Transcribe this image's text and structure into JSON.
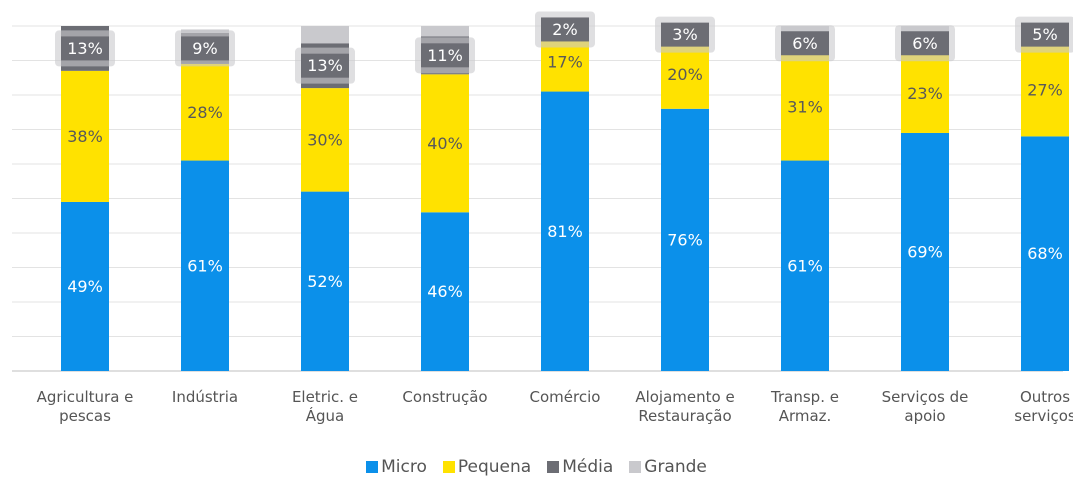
{
  "chart_data": {
    "type": "stacked_bar",
    "categories": [
      "Agricultura e\npescas",
      "Indústria",
      "Eletric. e\nÁgua",
      "Construção",
      "Comércio",
      "Alojamento e\nRestauração",
      "Transp. e\nArmaz.",
      "Serviços de\napoio",
      "Outros\nserviços"
    ],
    "series": [
      {
        "name": "Micro",
        "color": "#0b90ea",
        "values": [
          49,
          61,
          52,
          46,
          81,
          76,
          61,
          69,
          68
        ],
        "value_labels": [
          "49%",
          "61%",
          "52%",
          "46%",
          "81%",
          "76%",
          "61%",
          "69%",
          "68%"
        ]
      },
      {
        "name": "Pequena",
        "color": "#ffe200",
        "values": [
          38,
          28,
          30,
          40,
          17,
          20,
          31,
          23,
          27
        ],
        "value_labels": [
          "38%",
          "28%",
          "30%",
          "40%",
          "17%",
          "20%",
          "31%",
          "23%",
          "27%"
        ]
      },
      {
        "name": "Média",
        "color": "#6c6d74",
        "values": [
          13,
          9,
          13,
          11,
          2,
          3,
          6,
          6,
          5
        ],
        "value_labels": [
          "13%",
          "9%",
          "13%",
          "11%",
          "2%",
          "3%",
          "6%",
          "6%",
          "5%"
        ]
      },
      {
        "name": "Grande",
        "color": "#c9c9cd",
        "values": [
          0,
          1,
          5,
          3,
          1,
          1,
          2,
          2,
          1
        ]
      }
    ],
    "ylim": [
      0,
      100
    ],
    "yticks": [
      0,
      10,
      20,
      30,
      40,
      50,
      60,
      70,
      80,
      90,
      100
    ],
    "grid": true
  }
}
